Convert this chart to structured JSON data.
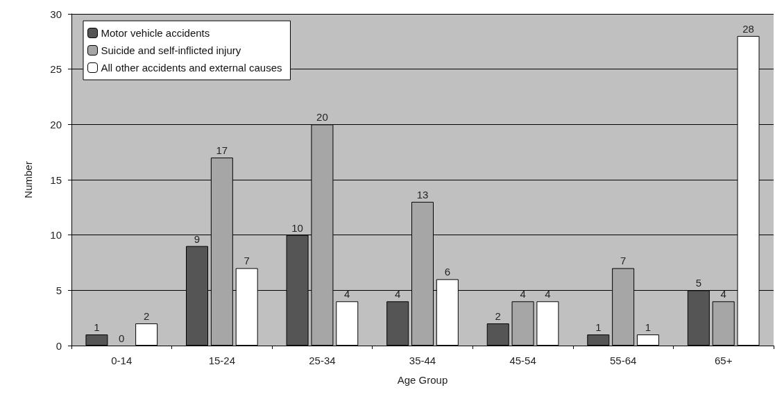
{
  "chart_data": {
    "type": "bar",
    "xlabel": "Age Group",
    "ylabel": "Number",
    "categories": [
      "0-14",
      "15-24",
      "25-34",
      "35-44",
      "45-54",
      "55-64",
      "65+"
    ],
    "series": [
      {
        "name": "Motor vehicle accidents",
        "color": "#555555",
        "values": [
          1,
          9,
          10,
          4,
          2,
          1,
          5
        ]
      },
      {
        "name": "Suicide and self-inflicted injury",
        "color": "#a6a6a6",
        "values": [
          0,
          17,
          20,
          13,
          4,
          7,
          4
        ]
      },
      {
        "name": "All other accidents and external causes",
        "color": "#ffffff",
        "values": [
          2,
          7,
          4,
          6,
          4,
          1,
          28
        ]
      }
    ],
    "ylim": [
      0,
      30
    ],
    "yticks": [
      0,
      5,
      10,
      15,
      20,
      25,
      30
    ],
    "grid": "y",
    "legend": "top left",
    "data_labels": true
  }
}
